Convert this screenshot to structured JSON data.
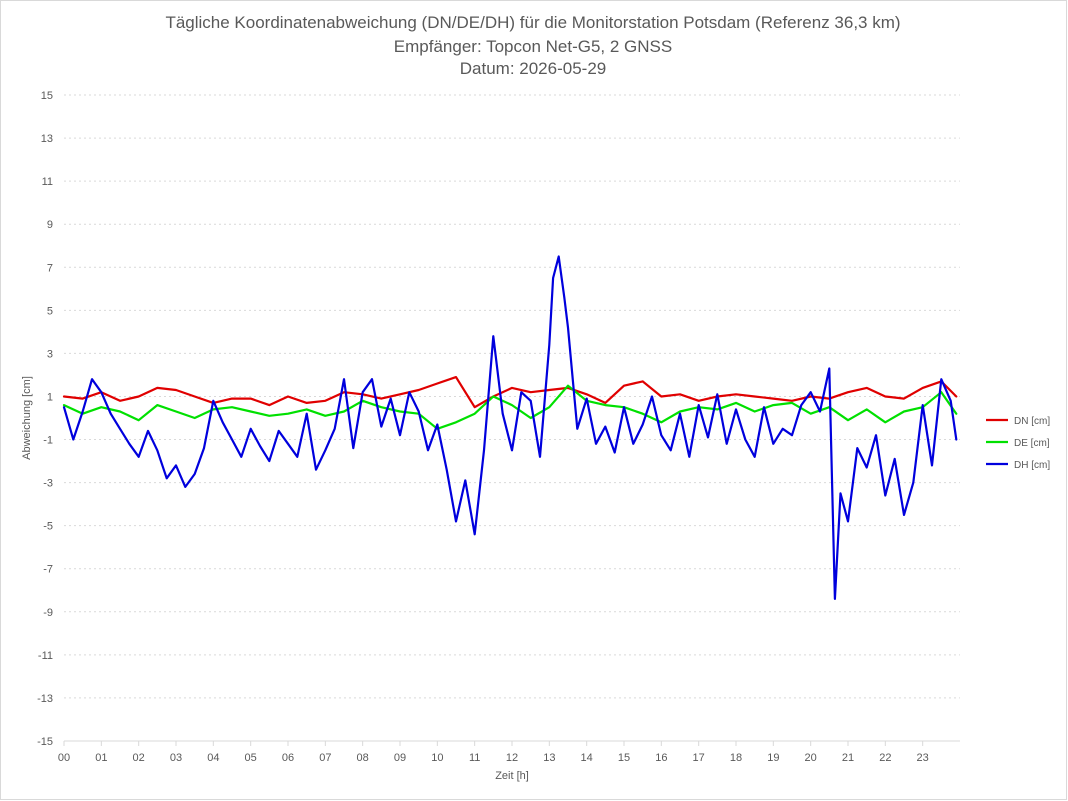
{
  "chart_data": {
    "type": "line",
    "title_lines": [
      "Tägliche Koordinatenabweichung (DN/DE/DH) für die Monitorstation Potsdam (Referenz 36,3 km)",
      "Empfänger: Topcon Net-G5, 2 GNSS",
      "Datum: 2026-05-29"
    ],
    "xlabel": "Zeit [h]",
    "ylabel": "Abweichung [cm]",
    "xlim": [
      0,
      24
    ],
    "ylim": [
      -15,
      15
    ],
    "x_tick_labels": [
      "00",
      "01",
      "02",
      "03",
      "04",
      "05",
      "06",
      "07",
      "08",
      "09",
      "10",
      "11",
      "12",
      "13",
      "14",
      "15",
      "16",
      "17",
      "18",
      "19",
      "20",
      "21",
      "22",
      "23"
    ],
    "y_tick_labels": [
      "15",
      "13",
      "11",
      "9",
      "7",
      "5",
      "3",
      "1",
      "-1",
      "-3",
      "-5",
      "-7",
      "-9",
      "-11",
      "-13",
      "-15"
    ],
    "grid": true,
    "legend_position": "right",
    "series": [
      {
        "name": "DN [cm]",
        "color": "#e00000",
        "x": [
          0,
          0.5,
          1,
          1.5,
          2,
          2.5,
          3,
          3.5,
          4,
          4.5,
          5,
          5.5,
          6,
          6.5,
          7,
          7.5,
          8,
          8.5,
          9,
          9.5,
          10,
          10.5,
          11,
          11.5,
          12,
          12.5,
          13,
          13.5,
          14,
          14.5,
          15,
          15.5,
          16,
          16.5,
          17,
          17.5,
          18,
          18.5,
          19,
          19.5,
          20,
          20.5,
          21,
          21.5,
          22,
          22.5,
          23,
          23.5,
          23.9
        ],
        "values": [
          1.0,
          0.9,
          1.2,
          0.8,
          1.0,
          1.4,
          1.3,
          1.0,
          0.7,
          0.9,
          0.9,
          0.6,
          1.0,
          0.7,
          0.8,
          1.2,
          1.1,
          0.9,
          1.1,
          1.3,
          1.6,
          1.9,
          0.5,
          1.0,
          1.4,
          1.2,
          1.3,
          1.4,
          1.1,
          0.7,
          1.5,
          1.7,
          1.0,
          1.1,
          0.8,
          1.0,
          1.1,
          1.0,
          0.9,
          0.8,
          1.0,
          0.9,
          1.2,
          1.4,
          1.0,
          0.9,
          1.4,
          1.7,
          1.0
        ]
      },
      {
        "name": "DE [cm]",
        "color": "#00e000",
        "x": [
          0,
          0.5,
          1,
          1.5,
          2,
          2.5,
          3,
          3.5,
          4,
          4.5,
          5,
          5.5,
          6,
          6.5,
          7,
          7.5,
          8,
          8.5,
          9,
          9.5,
          10,
          10.5,
          11,
          11.5,
          12,
          12.5,
          13,
          13.5,
          14,
          14.5,
          15,
          15.5,
          16,
          16.5,
          17,
          17.5,
          18,
          18.5,
          19,
          19.5,
          20,
          20.5,
          21,
          21.5,
          22,
          22.5,
          23,
          23.5,
          23.9
        ],
        "values": [
          0.6,
          0.2,
          0.5,
          0.3,
          -0.1,
          0.6,
          0.3,
          0.0,
          0.4,
          0.5,
          0.3,
          0.1,
          0.2,
          0.4,
          0.1,
          0.3,
          0.8,
          0.5,
          0.3,
          0.2,
          -0.5,
          -0.2,
          0.2,
          1.0,
          0.6,
          0.0,
          0.5,
          1.5,
          0.8,
          0.6,
          0.5,
          0.2,
          -0.2,
          0.3,
          0.5,
          0.4,
          0.7,
          0.3,
          0.6,
          0.7,
          0.2,
          0.5,
          -0.1,
          0.4,
          -0.2,
          0.3,
          0.5,
          1.2,
          0.2
        ]
      },
      {
        "name": "DH [cm]",
        "color": "#0000dd",
        "x": [
          0,
          0.25,
          0.5,
          0.75,
          1,
          1.25,
          1.5,
          1.75,
          2,
          2.25,
          2.5,
          2.75,
          3,
          3.25,
          3.5,
          3.75,
          4,
          4.25,
          4.5,
          4.75,
          5,
          5.25,
          5.5,
          5.75,
          6,
          6.25,
          6.5,
          6.75,
          7,
          7.25,
          7.5,
          7.75,
          8,
          8.25,
          8.5,
          8.75,
          9,
          9.25,
          9.5,
          9.75,
          10,
          10.25,
          10.5,
          10.75,
          11,
          11.25,
          11.5,
          11.75,
          12,
          12.25,
          12.5,
          12.75,
          13,
          13.1,
          13.25,
          13.4,
          13.5,
          13.75,
          14,
          14.25,
          14.5,
          14.75,
          15,
          15.25,
          15.5,
          15.75,
          16,
          16.25,
          16.5,
          16.75,
          17,
          17.25,
          17.5,
          17.75,
          18,
          18.25,
          18.5,
          18.75,
          19,
          19.25,
          19.5,
          19.75,
          20,
          20.25,
          20.5,
          20.65,
          20.8,
          21,
          21.25,
          21.5,
          21.75,
          22,
          22.25,
          22.5,
          22.75,
          23,
          23.25,
          23.5,
          23.75,
          23.9
        ],
        "values": [
          0.5,
          -1.0,
          0.3,
          1.8,
          1.2,
          0.2,
          -0.5,
          -1.2,
          -1.8,
          -0.6,
          -1.5,
          -2.8,
          -2.2,
          -3.2,
          -2.6,
          -1.4,
          0.8,
          -0.2,
          -1.0,
          -1.8,
          -0.5,
          -1.3,
          -2.0,
          -0.6,
          -1.2,
          -1.8,
          0.2,
          -2.4,
          -1.5,
          -0.5,
          1.8,
          -1.4,
          1.2,
          1.8,
          -0.4,
          0.9,
          -0.8,
          1.2,
          0.3,
          -1.5,
          -0.3,
          -2.4,
          -4.8,
          -2.9,
          -5.4,
          -1.5,
          3.8,
          0.2,
          -1.5,
          1.2,
          0.8,
          -1.8,
          3.4,
          6.5,
          7.5,
          5.6,
          4.2,
          -0.5,
          0.9,
          -1.2,
          -0.4,
          -1.6,
          0.5,
          -1.2,
          -0.3,
          1.0,
          -0.8,
          -1.5,
          0.2,
          -1.8,
          0.6,
          -0.9,
          1.1,
          -1.2,
          0.4,
          -1.0,
          -1.8,
          0.5,
          -1.2,
          -0.5,
          -0.8,
          0.6,
          1.2,
          0.3,
          2.3,
          -8.4,
          -3.5,
          -4.8,
          -1.4,
          -2.3,
          -0.8,
          -3.6,
          -1.9,
          -4.5,
          -3.0,
          0.6,
          -2.2,
          1.8,
          0.8,
          -1.0
        ]
      }
    ]
  }
}
